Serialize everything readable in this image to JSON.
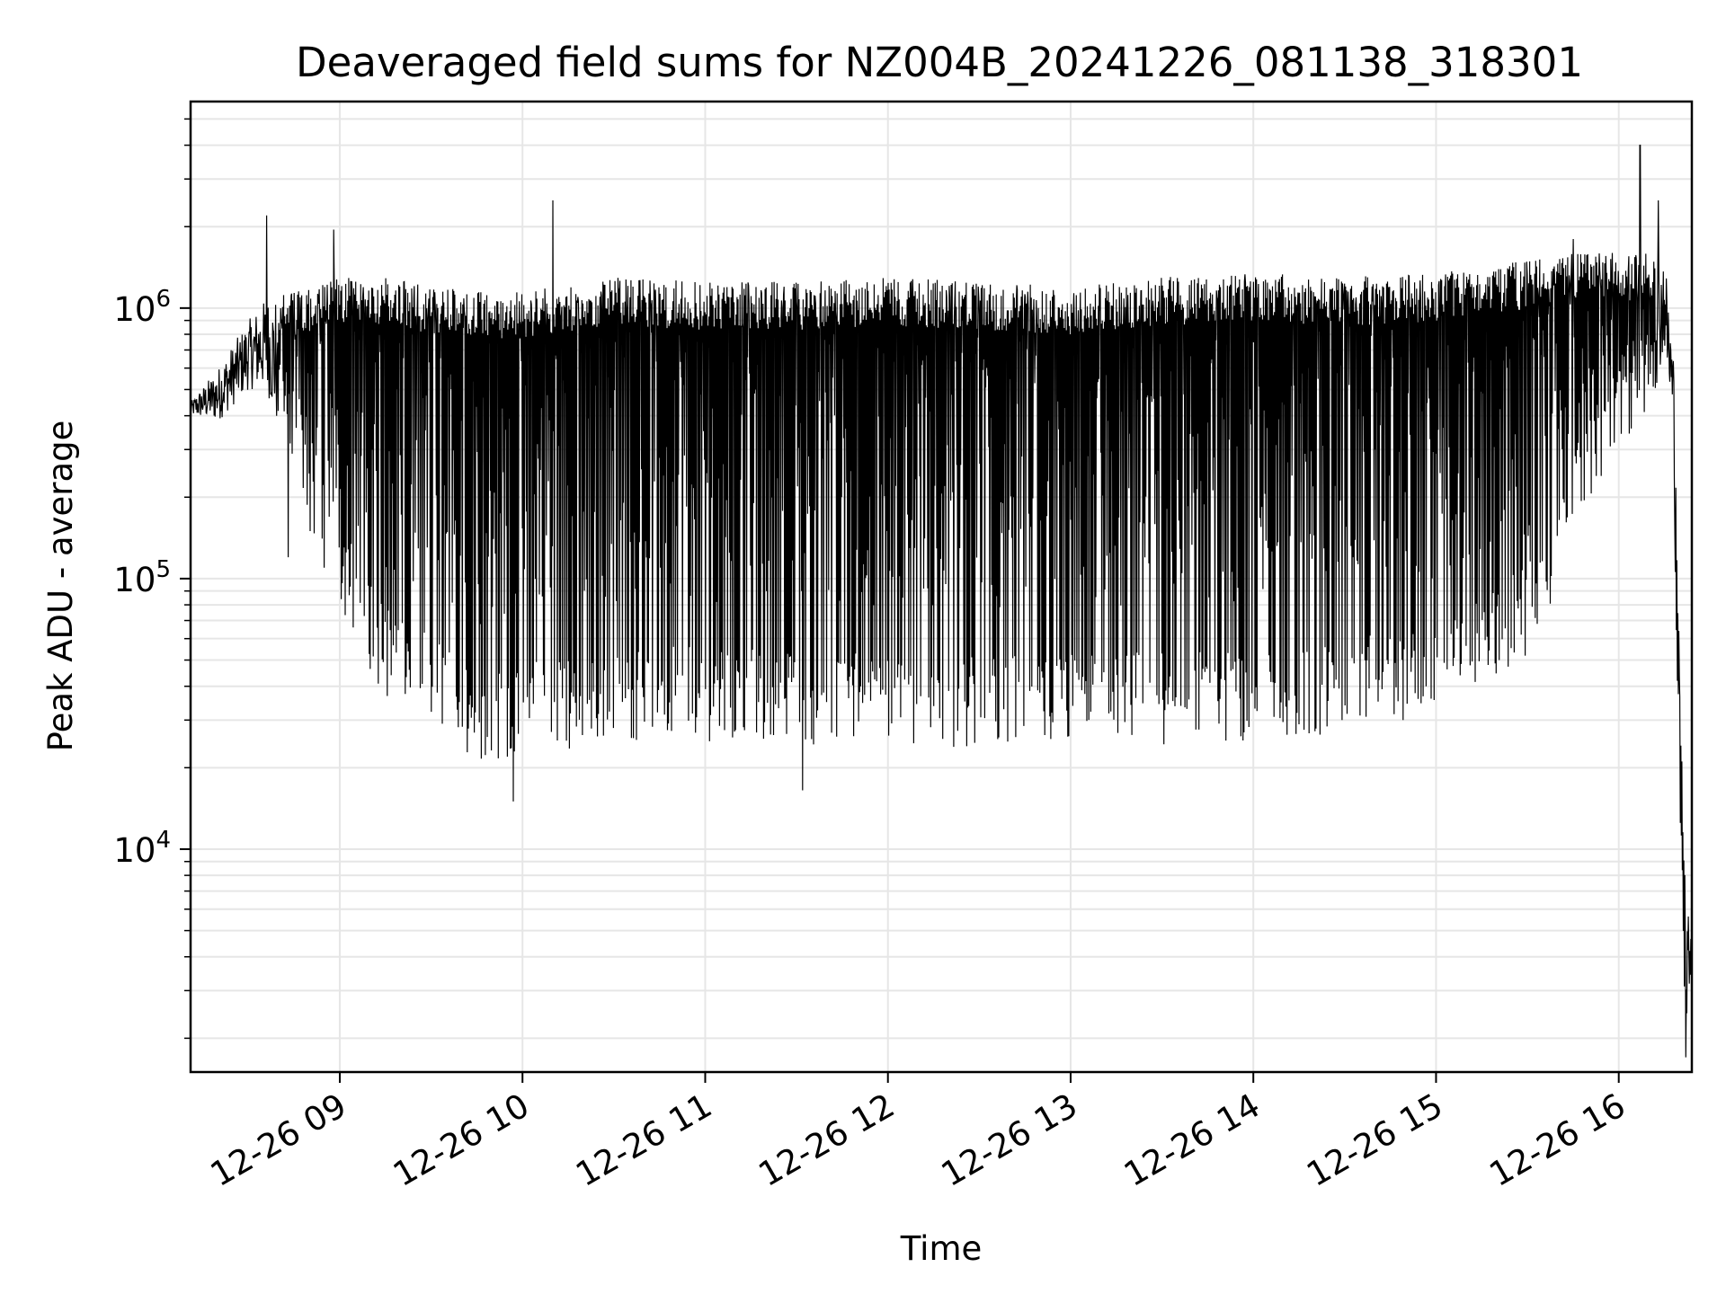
{
  "chart_data": {
    "type": "line",
    "title": "Deaveraged field sums for NZ004B_20241226_081138_318301",
    "xlabel": "Time",
    "ylabel": "Peak ADU - average",
    "yscale": "log",
    "ylim": [
      1500,
      5800000
    ],
    "xlim": [
      "2024-12-26 08:11",
      "2024-12-26 16:24"
    ],
    "grid": true,
    "line_color": "#000000",
    "grid_color": "#e6e6e6",
    "x_ticks": [
      "12-26 09",
      "12-26 10",
      "12-26 11",
      "12-26 12",
      "12-26 13",
      "12-26 14",
      "12-26 15",
      "12-26 16"
    ],
    "y_ticks": [
      {
        "value": 10000,
        "label": "10^4",
        "base": "10",
        "exp": "4"
      },
      {
        "value": 100000,
        "label": "10^5",
        "base": "10",
        "exp": "5"
      },
      {
        "value": 1000000,
        "label": "10^6",
        "base": "10",
        "exp": "6"
      }
    ],
    "envelope": [
      {
        "x": "2024-12-26 08:11",
        "high": 450000,
        "low": 400000
      },
      {
        "x": "2024-12-26 08:20",
        "high": 600000,
        "low": 380000
      },
      {
        "x": "2024-12-26 08:30",
        "high": 900000,
        "low": 500000
      },
      {
        "x": "2024-12-26 08:36",
        "high": 1100000,
        "low": 500000
      },
      {
        "x": "2024-12-26 08:45",
        "high": 1150000,
        "low": 200000
      },
      {
        "x": "2024-12-26 09:00",
        "high": 1300000,
        "low": 80000
      },
      {
        "x": "2024-12-26 09:15",
        "high": 1300000,
        "low": 35000
      },
      {
        "x": "2024-12-26 09:30",
        "high": 1200000,
        "low": 30000
      },
      {
        "x": "2024-12-26 09:45",
        "high": 1150000,
        "low": 20000
      },
      {
        "x": "2024-12-26 10:00",
        "high": 1150000,
        "low": 22000
      },
      {
        "x": "2024-12-26 10:30",
        "high": 1300000,
        "low": 25000
      },
      {
        "x": "2024-12-26 11:00",
        "high": 1250000,
        "low": 25000
      },
      {
        "x": "2024-12-26 11:30",
        "high": 1250000,
        "low": 24000
      },
      {
        "x": "2024-12-26 12:00",
        "high": 1300000,
        "low": 24000
      },
      {
        "x": "2024-12-26 12:30",
        "high": 1250000,
        "low": 23000
      },
      {
        "x": "2024-12-26 13:00",
        "high": 1200000,
        "low": 24000
      },
      {
        "x": "2024-12-26 13:30",
        "high": 1300000,
        "low": 24000
      },
      {
        "x": "2024-12-26 14:00",
        "high": 1350000,
        "low": 25000
      },
      {
        "x": "2024-12-26 14:30",
        "high": 1300000,
        "low": 27000
      },
      {
        "x": "2024-12-26 15:00",
        "high": 1350000,
        "low": 30000
      },
      {
        "x": "2024-12-26 15:30",
        "high": 1500000,
        "low": 50000
      },
      {
        "x": "2024-12-26 15:45",
        "high": 1600000,
        "low": 130000
      },
      {
        "x": "2024-12-26 16:00",
        "high": 1600000,
        "low": 300000
      },
      {
        "x": "2024-12-26 16:10",
        "high": 1600000,
        "low": 400000
      },
      {
        "x": "2024-12-26 16:15",
        "high": 1600000,
        "low": 700000
      },
      {
        "x": "2024-12-26 16:18",
        "high": 700000,
        "low": 300000
      },
      {
        "x": "2024-12-26 16:20",
        "high": 50000,
        "low": 8000
      },
      {
        "x": "2024-12-26 16:22",
        "high": 6000,
        "low": 2000
      },
      {
        "x": "2024-12-26 16:24",
        "high": 5500,
        "low": 4000
      }
    ],
    "spikes": [
      {
        "x": "2024-12-26 08:36",
        "y": 2200000
      },
      {
        "x": "2024-12-26 08:58",
        "y": 1950000
      },
      {
        "x": "2024-12-26 10:10",
        "y": 2500000
      },
      {
        "x": "2024-12-26 15:45",
        "y": 1800000
      },
      {
        "x": "2024-12-26 16:07",
        "y": 4000000
      },
      {
        "x": "2024-12-26 16:13",
        "y": 2500000
      }
    ],
    "dips": [
      {
        "x": "2024-12-26 08:43",
        "y": 120000
      },
      {
        "x": "2024-12-26 09:57",
        "y": 15000
      },
      {
        "x": "2024-12-26 11:32",
        "y": 16500
      },
      {
        "x": "2024-12-26 16:22",
        "y": 1700
      }
    ]
  }
}
